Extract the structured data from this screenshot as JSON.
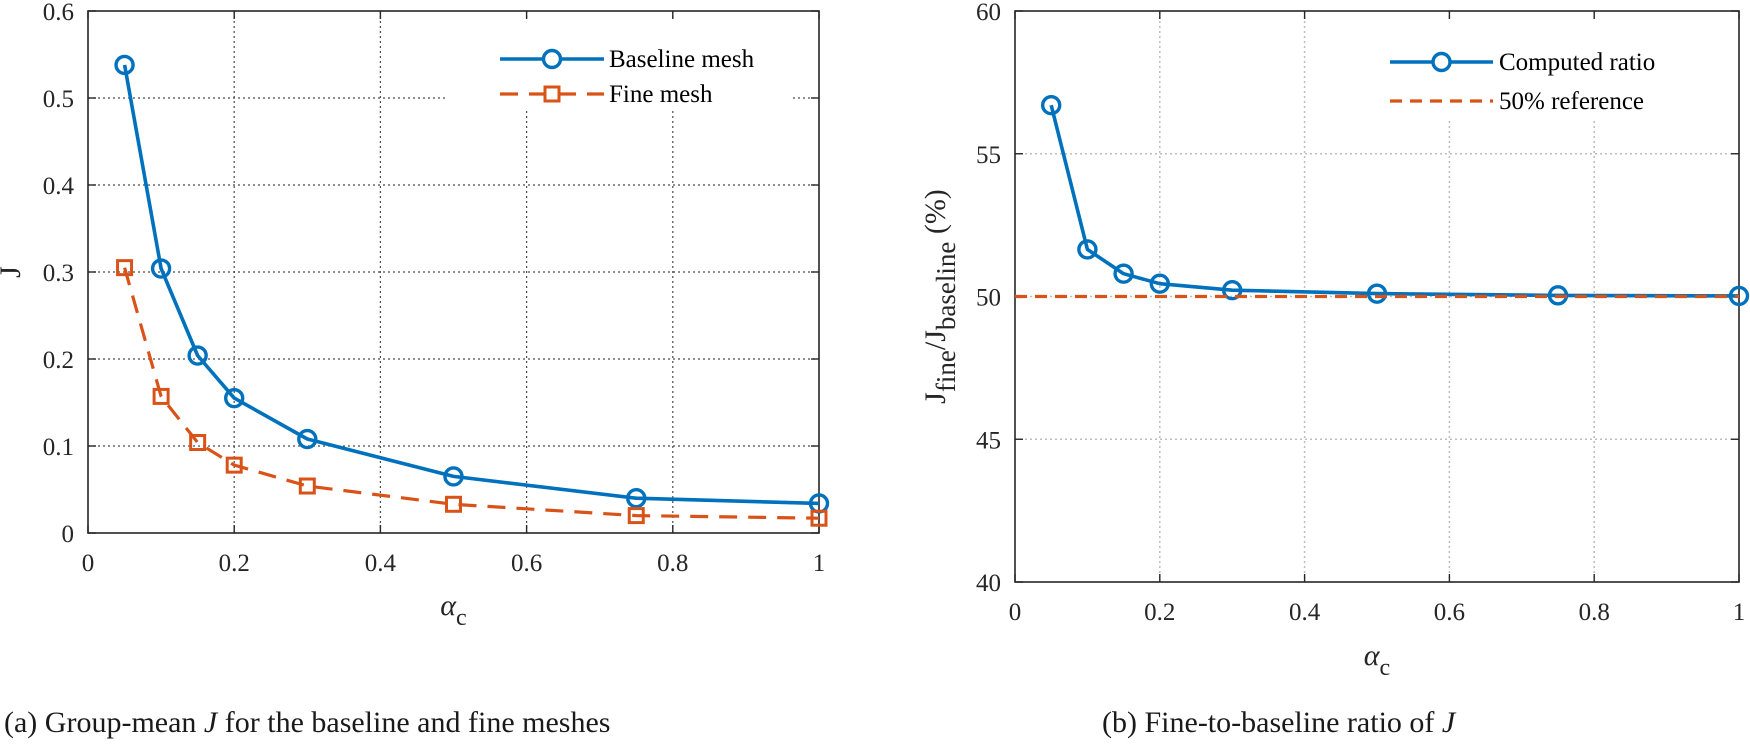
{
  "colors": {
    "blue": "#0072BD",
    "orange": "#D95319",
    "grid": "#262626",
    "axis": "#262626"
  },
  "chart_data": [
    {
      "type": "line",
      "xlabel_symbol": "α",
      "xlabel_sub": "c",
      "ylabel": "J",
      "xlim": [
        0,
        1
      ],
      "ylim": [
        0,
        0.6
      ],
      "xticks": [
        "0",
        "0.2",
        "0.4",
        "0.6",
        "0.8",
        "1"
      ],
      "yticks": [
        "0",
        "0.1",
        "0.2",
        "0.3",
        "0.4",
        "0.5",
        "0.6"
      ],
      "grid": "dotted",
      "legend_position": "top-right",
      "series": [
        {
          "name": "Baseline mesh",
          "color": "blue",
          "style": "solid",
          "marker": "circle",
          "x": [
            0.05,
            0.1,
            0.15,
            0.2,
            0.3,
            0.5,
            0.75,
            1.0
          ],
          "y": [
            0.538,
            0.304,
            0.204,
            0.155,
            0.108,
            0.065,
            0.04,
            0.034
          ]
        },
        {
          "name": "Fine mesh",
          "color": "orange",
          "style": "dashed",
          "marker": "square",
          "x": [
            0.05,
            0.1,
            0.15,
            0.2,
            0.3,
            0.5,
            0.75,
            1.0
          ],
          "y": [
            0.305,
            0.157,
            0.104,
            0.078,
            0.054,
            0.033,
            0.02,
            0.017
          ]
        }
      ]
    },
    {
      "type": "line",
      "xlabel_symbol": "α",
      "xlabel_sub": "c",
      "ylabel_parts": [
        "J",
        "fine",
        "/J",
        "baseline",
        "  (%)"
      ],
      "xlim": [
        0,
        1
      ],
      "ylim": [
        40,
        60
      ],
      "xticks": [
        "0",
        "0.2",
        "0.4",
        "0.6",
        "0.8",
        "1"
      ],
      "yticks": [
        "40",
        "45",
        "50",
        "55",
        "60"
      ],
      "grid": "dotted",
      "legend_position": "top-right",
      "series": [
        {
          "name": "Computed ratio",
          "color": "blue",
          "style": "solid",
          "marker": "circle",
          "x": [
            0.05,
            0.1,
            0.15,
            0.2,
            0.3,
            0.5,
            0.75,
            1.0
          ],
          "y": [
            56.7,
            51.65,
            50.8,
            50.45,
            50.22,
            50.1,
            50.04,
            50.02
          ]
        },
        {
          "name": "50% reference",
          "color": "orange",
          "style": "dashed",
          "marker": "none",
          "x": [
            0,
            1
          ],
          "y": [
            50,
            50
          ]
        }
      ]
    }
  ],
  "captions": {
    "a": {
      "prefix": "(a)  Group-mean ",
      "italic": "J",
      "suffix": " for the baseline and fine meshes"
    },
    "b": {
      "prefix": "(b) Fine-to-baseline ratio of ",
      "italic": "J",
      "suffix": ""
    }
  }
}
